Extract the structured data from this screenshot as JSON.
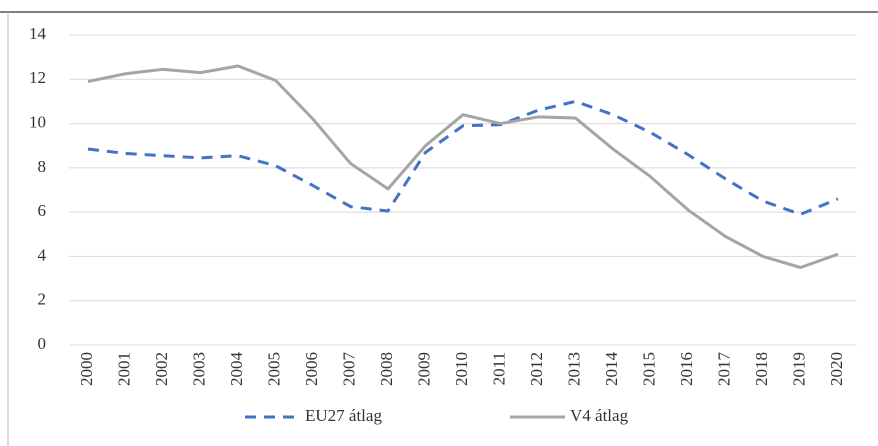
{
  "chart_data": {
    "type": "line",
    "categories": [
      "2000",
      "2001",
      "2002",
      "2003",
      "2004",
      "2005",
      "2006",
      "2007",
      "2008",
      "2009",
      "2010",
      "2011",
      "2012",
      "2013",
      "2014",
      "2015",
      "2016",
      "2017",
      "2018",
      "2019",
      "2020"
    ],
    "series": [
      {
        "name": "EU27 átlag",
        "color": "#4472c4",
        "dashed": true,
        "values": [
          8.85,
          8.65,
          8.55,
          8.45,
          8.55,
          8.1,
          7.2,
          6.25,
          6.05,
          8.7,
          9.9,
          9.95,
          10.6,
          11.0,
          10.4,
          9.6,
          8.6,
          7.5,
          6.5,
          5.9,
          6.6
        ]
      },
      {
        "name": "V4 átlag",
        "color": "#a5a5a5",
        "dashed": false,
        "values": [
          11.9,
          12.25,
          12.45,
          12.3,
          12.6,
          11.95,
          10.2,
          8.2,
          7.05,
          9.0,
          10.4,
          10.0,
          10.3,
          10.25,
          8.85,
          7.6,
          6.1,
          4.9,
          4.0,
          3.5,
          4.1
        ]
      }
    ],
    "ylim": [
      0,
      14
    ],
    "yticks": [
      0,
      2,
      4,
      6,
      8,
      10,
      12,
      14
    ],
    "grid": true,
    "legend": "bottom"
  }
}
